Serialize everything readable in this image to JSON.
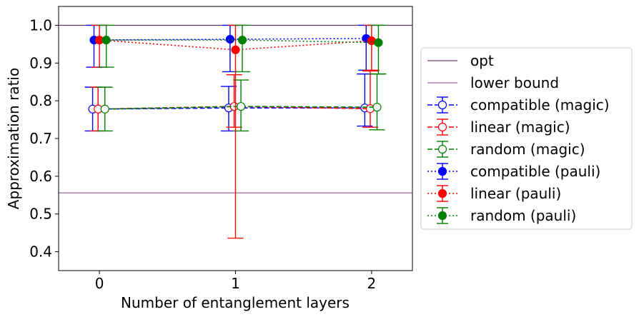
{
  "chart_data": {
    "type": "scatter",
    "xlabel": "Number of entanglement layers",
    "ylabel": "Approximation ratio",
    "xlim": [
      -0.3,
      2.3
    ],
    "ylim": [
      0.35,
      1.05
    ],
    "x_ticks": [
      0,
      1,
      2
    ],
    "y_ticks": [
      0.4,
      0.5,
      0.6,
      0.7,
      0.8,
      0.9,
      1.0
    ],
    "x_tick_labels": [
      "0",
      "1",
      "2"
    ],
    "y_tick_labels": [
      "0.4",
      "0.5",
      "0.6",
      "0.7",
      "0.8",
      "0.9",
      "1.0"
    ],
    "grid": false,
    "legend_position": "right",
    "reference_lines": [
      {
        "name": "opt",
        "y": 1.0,
        "color": "#4b0f4b"
      },
      {
        "name": "lower bound",
        "y": 0.556,
        "color": "#8b3a8b"
      }
    ],
    "series": [
      {
        "name": "compatible (magic)",
        "color": "#0000ff",
        "marker": "open",
        "linestyle": "dashed",
        "x": [
          -0.05,
          0.95,
          1.95
        ],
        "y": [
          0.778,
          0.781,
          0.781
        ],
        "err_low": [
          0.72,
          0.72,
          0.733
        ],
        "err_high": [
          0.836,
          0.838,
          0.871
        ]
      },
      {
        "name": "linear (magic)",
        "color": "#ff0000",
        "marker": "open",
        "linestyle": "dashed",
        "x": [
          -0.01,
          0.99,
          1.99
        ],
        "y": [
          0.778,
          0.785,
          0.779
        ],
        "err_low": [
          0.72,
          0.73,
          0.73
        ],
        "err_high": [
          0.836,
          0.869,
          0.879
        ]
      },
      {
        "name": "random (magic)",
        "color": "#008000",
        "marker": "open",
        "linestyle": "dashed",
        "x": [
          0.04,
          1.04,
          2.04
        ],
        "y": [
          0.778,
          0.785,
          0.783
        ],
        "err_low": [
          0.72,
          0.72,
          0.723
        ],
        "err_high": [
          0.836,
          0.855,
          0.871
        ]
      },
      {
        "name": "compatible (pauli)",
        "color": "#0000ff",
        "marker": "filled",
        "linestyle": "dotted",
        "x": [
          -0.04,
          0.96,
          1.96
        ],
        "y": [
          0.961,
          0.963,
          0.965
        ],
        "err_low": [
          0.889,
          0.877,
          0.881
        ],
        "err_high": [
          1.0,
          1.0,
          1.0
        ]
      },
      {
        "name": "linear (pauli)",
        "color": "#ff0000",
        "marker": "filled",
        "linestyle": "dotted",
        "x": [
          0.0,
          1.0,
          2.0
        ],
        "y": [
          0.961,
          0.935,
          0.959
        ],
        "err_low": [
          0.889,
          0.436,
          0.881
        ],
        "err_high": [
          1.0,
          1.0,
          1.0
        ]
      },
      {
        "name": "random (pauli)",
        "color": "#008000",
        "marker": "filled",
        "linestyle": "dotted",
        "x": [
          0.05,
          1.05,
          2.05
        ],
        "y": [
          0.961,
          0.961,
          0.954
        ],
        "err_low": [
          0.889,
          0.877,
          0.871
        ],
        "err_high": [
          1.0,
          1.0,
          1.0
        ]
      }
    ]
  }
}
